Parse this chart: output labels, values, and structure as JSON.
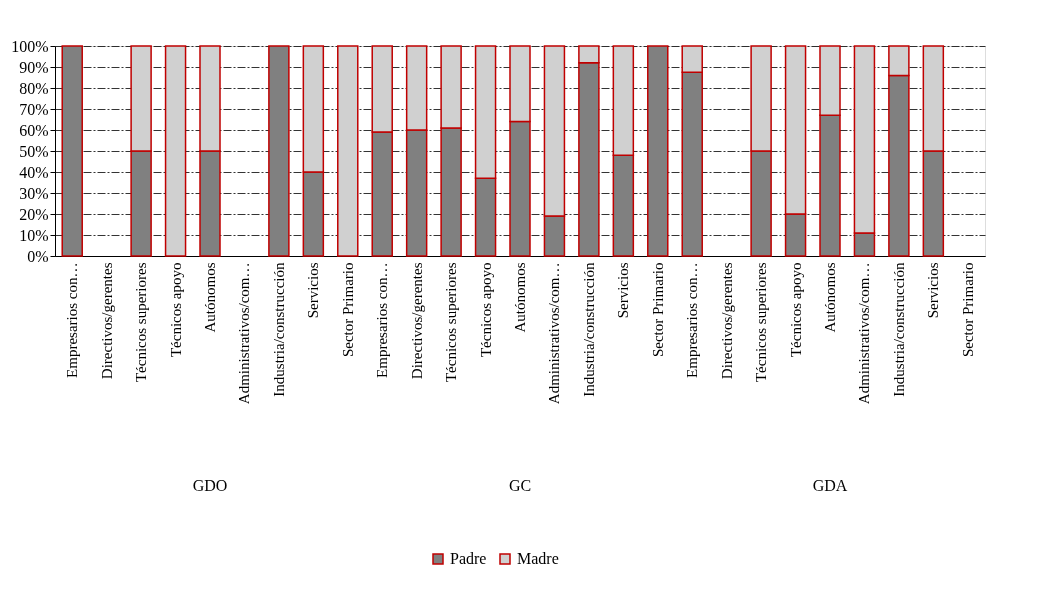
{
  "chart_data": {
    "type": "bar",
    "stacked": true,
    "categories": [
      "Empresarios con…",
      "Directivos/gerentes",
      "Técnicos superiores",
      "Técnicos apoyo",
      "Autónomos",
      "Administrativos/com…",
      "Industria/construcción",
      "Servicios",
      "Sector Primario",
      "Empresarios con…",
      "Directivos/gerentes",
      "Técnicos superiores",
      "Técnicos apoyo",
      "Autónomos",
      "Administrativos/com…",
      "Industria/construcción",
      "Servicios",
      "Sector Primario",
      "Empresarios con…",
      "Directivos/gerentes",
      "Técnicos superiores",
      "Técnicos apoyo",
      "Autónomos",
      "Administrativos/com…",
      "Industria/construcción",
      "Servicios",
      "Sector Primario"
    ],
    "series": [
      {
        "name": "Padre",
        "color": "#808080",
        "values": [
          100,
          null,
          50,
          0,
          50,
          null,
          100,
          40,
          0,
          59,
          60,
          61,
          37,
          64,
          19,
          92,
          48,
          100,
          87.5,
          null,
          50,
          20,
          67,
          11,
          86,
          50,
          null
        ]
      },
      {
        "name": "Madre",
        "color": "#d0d0d0",
        "values": [
          0,
          null,
          50,
          100,
          50,
          null,
          0,
          60,
          100,
          41,
          40,
          39,
          63,
          36,
          81,
          8,
          52,
          0,
          12.5,
          null,
          50,
          80,
          33,
          89,
          14,
          50,
          null
        ]
      }
    ],
    "ylim": [
      0,
      100
    ],
    "yticks": [
      {
        "value": 0,
        "label": "0%"
      },
      {
        "value": 10,
        "label": "10%"
      },
      {
        "value": 20,
        "label": "20%"
      },
      {
        "value": 30,
        "label": "30%"
      },
      {
        "value": 40,
        "label": "40%"
      },
      {
        "value": 50,
        "label": "50%"
      },
      {
        "value": 60,
        "label": "60%"
      },
      {
        "value": 70,
        "label": "70%"
      },
      {
        "value": 80,
        "label": "80%"
      },
      {
        "value": 90,
        "label": "90%"
      },
      {
        "value": 100,
        "label": "100%"
      }
    ],
    "grid": "y",
    "legend": "bottom",
    "annotations": [
      "GDO",
      "GC",
      "GDA"
    ]
  }
}
